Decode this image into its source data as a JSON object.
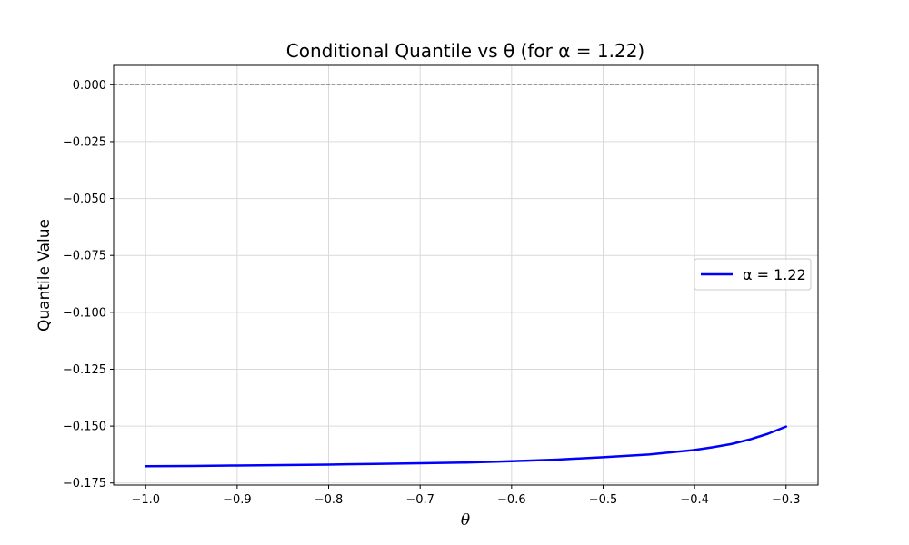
{
  "chart_data": {
    "type": "line",
    "title": "Conditional Quantile vs θ (for α = 1.22)",
    "xlabel": "θ",
    "ylabel": "Quantile Value",
    "xlim": [
      -1.035,
      -0.265
    ],
    "ylim": [
      -0.1759,
      0.0085
    ],
    "x_ticks": [
      -1.0,
      -0.9,
      -0.8,
      -0.7,
      -0.6,
      -0.5,
      -0.4,
      -0.3
    ],
    "x_tick_labels": [
      "−1.0",
      "−0.9",
      "−0.8",
      "−0.7",
      "−0.6",
      "−0.5",
      "−0.4",
      "−0.3"
    ],
    "y_ticks": [
      0.0,
      -0.025,
      -0.05,
      -0.075,
      -0.1,
      -0.125,
      -0.15,
      -0.175
    ],
    "y_tick_labels": [
      "0.000",
      "−0.025",
      "−0.050",
      "−0.075",
      "−0.100",
      "−0.125",
      "−0.150",
      "−0.175"
    ],
    "grid": true,
    "reference_line": {
      "y": 0.0,
      "style": "dashed",
      "color": "#808080"
    },
    "legend": {
      "placement": "center-right"
    },
    "series": [
      {
        "name": "α = 1.22",
        "color": "#0000ff",
        "x": [
          -1.0,
          -0.95,
          -0.9,
          -0.85,
          -0.8,
          -0.75,
          -0.7,
          -0.65,
          -0.6,
          -0.55,
          -0.5,
          -0.45,
          -0.4,
          -0.38,
          -0.36,
          -0.34,
          -0.32,
          -0.3
        ],
        "y": [
          -0.1676,
          -0.1675,
          -0.1673,
          -0.1671,
          -0.1669,
          -0.1666,
          -0.1663,
          -0.166,
          -0.1654,
          -0.1647,
          -0.1637,
          -0.1625,
          -0.1605,
          -0.1593,
          -0.1579,
          -0.1559,
          -0.1534,
          -0.1502
        ]
      }
    ]
  }
}
